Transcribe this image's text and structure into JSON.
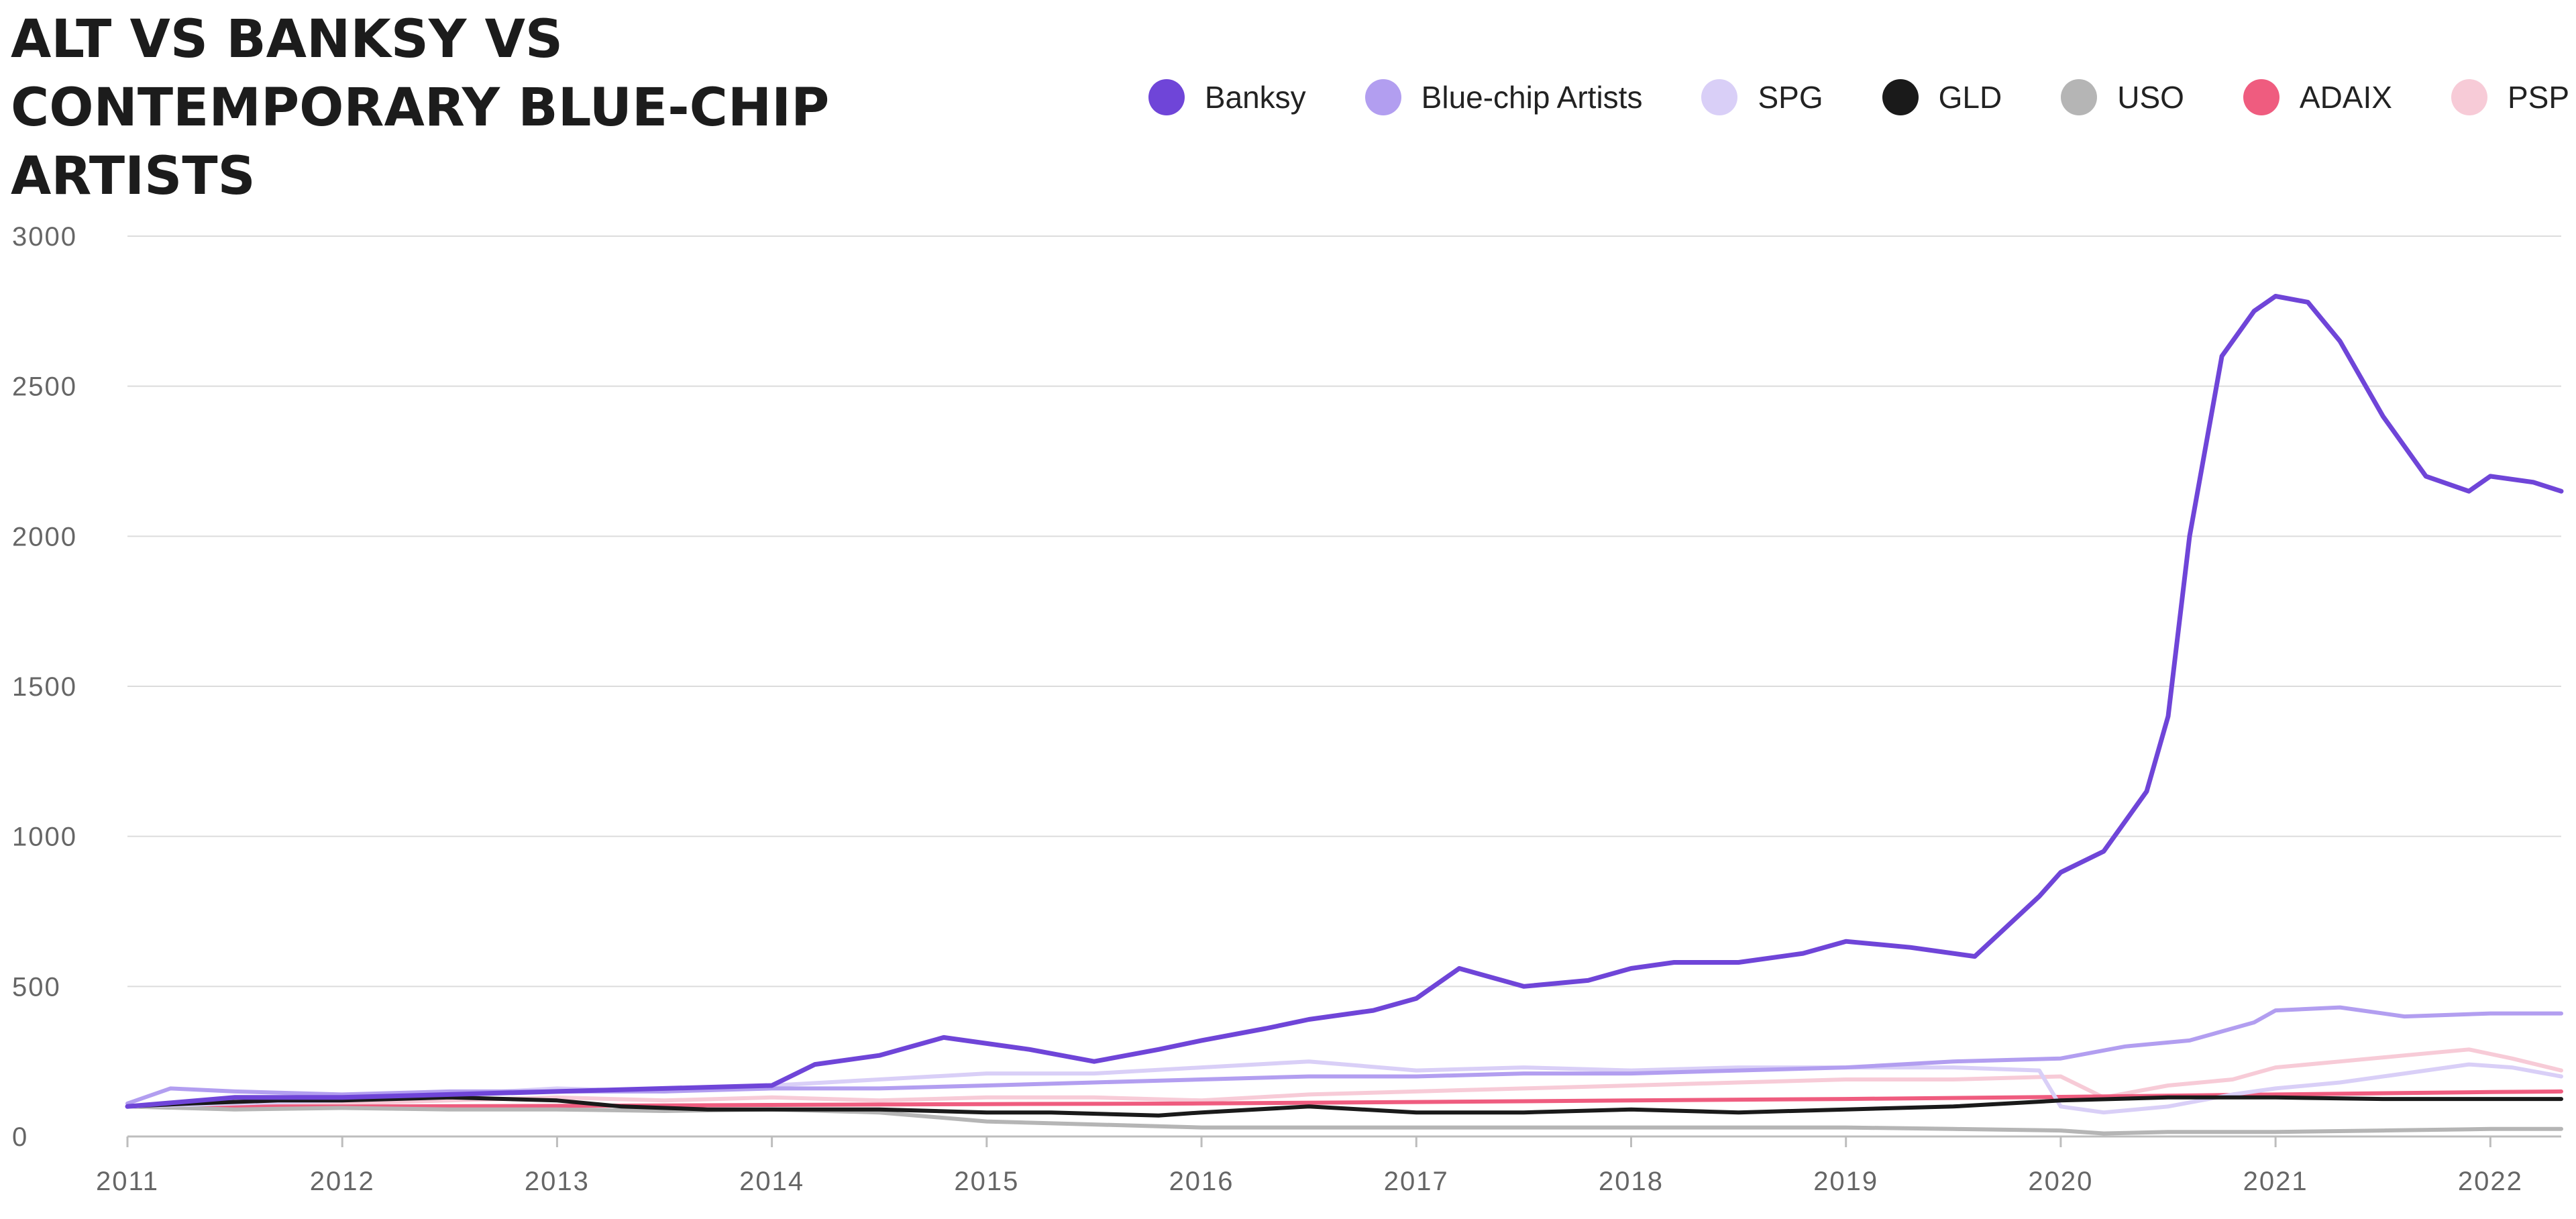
{
  "title": "ALT VS BANKSY VS CONTEMPORARY BLUE-CHIP ARTISTS",
  "chart_data": {
    "type": "line",
    "title": "ALT VS BANKSY VS CONTEMPORARY BLUE-CHIP ARTISTS",
    "xlabel": "",
    "ylabel": "",
    "xlim": [
      2011.0,
      2022.33
    ],
    "ylim": [
      0,
      3000
    ],
    "x_ticks": [
      "2011",
      "2012",
      "2013",
      "2014",
      "2015",
      "2016",
      "2017",
      "2018",
      "2019",
      "2020",
      "2021",
      "2022"
    ],
    "y_ticks": [
      "0",
      "500",
      "1000",
      "1500",
      "2000",
      "2500",
      "3000"
    ],
    "grid": "horizontal",
    "legend": "top-right",
    "series": [
      {
        "name": "Banksy",
        "color": "#6f45d8",
        "x": [
          2011.0,
          2011.5,
          2012.0,
          2012.5,
          2013.0,
          2013.5,
          2014.0,
          2014.2,
          2014.5,
          2014.8,
          2015.2,
          2015.5,
          2015.8,
          2016.0,
          2016.3,
          2016.5,
          2016.8,
          2017.0,
          2017.2,
          2017.5,
          2017.8,
          2018.0,
          2018.2,
          2018.5,
          2018.8,
          2019.0,
          2019.3,
          2019.6,
          2019.9,
          2020.0,
          2020.2,
          2020.4,
          2020.5,
          2020.6,
          2020.75,
          2020.9,
          2021.0,
          2021.15,
          2021.3,
          2021.5,
          2021.7,
          2021.9,
          2022.0,
          2022.2,
          2022.33
        ],
        "y": [
          100,
          130,
          130,
          140,
          150,
          160,
          170,
          240,
          270,
          330,
          290,
          250,
          290,
          320,
          360,
          390,
          420,
          460,
          560,
          500,
          520,
          560,
          580,
          580,
          610,
          650,
          630,
          600,
          800,
          880,
          950,
          1150,
          1400,
          2000,
          2600,
          2750,
          2800,
          2780,
          2650,
          2400,
          2200,
          2150,
          2200,
          2180,
          2150
        ]
      },
      {
        "name": "Blue-chip Artists",
        "color": "#b29ef0",
        "x": [
          2011.0,
          2011.2,
          2011.5,
          2012.0,
          2012.5,
          2013.0,
          2013.5,
          2014.0,
          2014.5,
          2015.0,
          2015.5,
          2016.0,
          2016.5,
          2017.0,
          2017.5,
          2018.0,
          2018.5,
          2019.0,
          2019.5,
          2020.0,
          2020.3,
          2020.6,
          2020.9,
          2021.0,
          2021.3,
          2021.6,
          2022.0,
          2022.33
        ],
        "y": [
          110,
          160,
          150,
          140,
          150,
          150,
          150,
          160,
          160,
          170,
          180,
          190,
          200,
          200,
          210,
          210,
          220,
          230,
          250,
          260,
          300,
          320,
          380,
          420,
          430,
          400,
          410,
          410
        ]
      },
      {
        "name": "SPG",
        "color": "#d9cff7",
        "x": [
          2011.0,
          2011.5,
          2012.0,
          2012.5,
          2013.0,
          2013.5,
          2014.0,
          2014.5,
          2015.0,
          2015.5,
          2016.0,
          2016.5,
          2017.0,
          2017.5,
          2018.0,
          2018.5,
          2019.0,
          2019.5,
          2019.9,
          2020.0,
          2020.2,
          2020.5,
          2020.8,
          2021.0,
          2021.3,
          2021.6,
          2021.9,
          2022.1,
          2022.33
        ],
        "y": [
          100,
          110,
          120,
          140,
          160,
          150,
          170,
          190,
          210,
          210,
          230,
          250,
          220,
          230,
          220,
          230,
          230,
          230,
          220,
          100,
          80,
          100,
          140,
          160,
          180,
          210,
          240,
          230,
          200
        ]
      },
      {
        "name": "GLD",
        "color": "#1a1a1a",
        "x": [
          2011.0,
          2011.3,
          2011.7,
          2012.0,
          2012.5,
          2013.0,
          2013.3,
          2013.7,
          2014.0,
          2014.5,
          2015.0,
          2015.3,
          2015.8,
          2016.0,
          2016.5,
          2017.0,
          2017.5,
          2018.0,
          2018.5,
          2019.0,
          2019.5,
          2020.0,
          2020.5,
          2021.0,
          2021.5,
          2022.0,
          2022.33
        ],
        "y": [
          100,
          110,
          120,
          120,
          130,
          120,
          100,
          90,
          90,
          90,
          80,
          80,
          70,
          80,
          100,
          80,
          80,
          90,
          80,
          90,
          100,
          120,
          130,
          130,
          125,
          125,
          125
        ]
      },
      {
        "name": "USO",
        "color": "#b5b5b5",
        "x": [
          2011.0,
          2011.5,
          2012.0,
          2012.5,
          2013.0,
          2013.5,
          2014.0,
          2014.5,
          2015.0,
          2015.5,
          2016.0,
          2016.5,
          2017.0,
          2017.5,
          2018.0,
          2018.5,
          2019.0,
          2019.5,
          2020.0,
          2020.2,
          2020.5,
          2021.0,
          2021.5,
          2022.0,
          2022.33
        ],
        "y": [
          100,
          90,
          95,
          90,
          90,
          85,
          90,
          80,
          50,
          40,
          30,
          30,
          30,
          30,
          30,
          30,
          30,
          25,
          20,
          10,
          15,
          15,
          20,
          25,
          25
        ]
      },
      {
        "name": "ADAIX",
        "color": "#ef5c7f",
        "x": [
          2011.0,
          2012.0,
          2013.0,
          2014.0,
          2015.0,
          2016.0,
          2017.0,
          2018.0,
          2019.0,
          2020.0,
          2021.0,
          2022.0,
          2022.33
        ],
        "y": [
          100,
          100,
          102,
          105,
          108,
          110,
          115,
          120,
          125,
          132,
          140,
          148,
          150
        ]
      },
      {
        "name": "PSP",
        "color": "#f7cbd7",
        "x": [
          2011.0,
          2011.5,
          2012.0,
          2012.5,
          2013.0,
          2013.5,
          2014.0,
          2014.5,
          2015.0,
          2015.5,
          2016.0,
          2016.5,
          2017.0,
          2017.5,
          2018.0,
          2018.5,
          2019.0,
          2019.5,
          2020.0,
          2020.2,
          2020.5,
          2020.8,
          2021.0,
          2021.3,
          2021.6,
          2021.9,
          2022.1,
          2022.33
        ],
        "y": [
          100,
          100,
          110,
          120,
          130,
          120,
          130,
          120,
          130,
          130,
          120,
          140,
          150,
          160,
          170,
          180,
          190,
          190,
          200,
          130,
          170,
          190,
          230,
          250,
          270,
          290,
          260,
          220
        ]
      }
    ]
  }
}
